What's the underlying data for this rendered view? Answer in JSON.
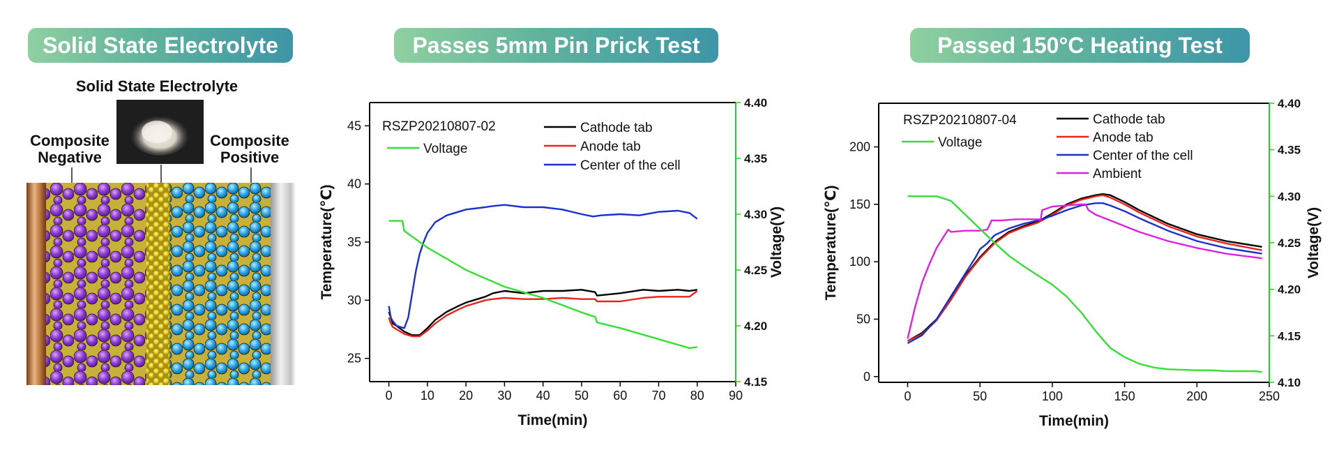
{
  "panels": {
    "electrolyte": {
      "title": "Solid State Electrolyte",
      "top_label": "Solid State Electrolyte",
      "negative_label": "Composite\nNegative",
      "positive_label": "Composite\nPositive"
    },
    "pin": {
      "title": "Passes 5mm Pin Prick Test"
    },
    "heating": {
      "title": "Passed 150°C Heating Test"
    }
  },
  "chart_data": [
    {
      "type": "line",
      "sample_id": "RSZP20210807-02",
      "xlabel": "Time(min)",
      "ylabel": "Temperature(℃)",
      "y2label": "Voltage(V)",
      "xlim": [
        -5,
        90
      ],
      "ylim": [
        23,
        47
      ],
      "y2lim": [
        4.15,
        4.4
      ],
      "xticks": [
        0,
        10,
        20,
        30,
        40,
        50,
        60,
        70,
        80,
        90
      ],
      "yticks": [
        25,
        30,
        35,
        40,
        45
      ],
      "y2ticks": [
        "4.15",
        "4.20",
        "4.25",
        "4.30",
        "4.35",
        "4.40"
      ],
      "series": [
        {
          "name": "Cathode tab",
          "color": "#000000",
          "axis": "left",
          "x": [
            0,
            0.5,
            1,
            2,
            4,
            6,
            8,
            10,
            12,
            15,
            18,
            20,
            25,
            27,
            30,
            35,
            40,
            45,
            50,
            53.5,
            54,
            60,
            66,
            70,
            75,
            78,
            80
          ],
          "y": [
            29,
            28.5,
            28,
            27.8,
            27.3,
            27.0,
            27.0,
            27.6,
            28.3,
            29.0,
            29.5,
            29.8,
            30.3,
            30.6,
            30.8,
            30.6,
            30.8,
            30.8,
            30.9,
            30.7,
            30.4,
            30.6,
            30.9,
            30.8,
            30.9,
            30.8,
            30.9
          ]
        },
        {
          "name": "Anode tab",
          "color": "#e8241c",
          "axis": "left",
          "x": [
            0,
            0.5,
            1,
            2,
            4,
            6,
            8,
            10,
            12,
            15,
            18,
            20,
            25,
            27,
            30,
            35,
            40,
            45,
            50,
            53.5,
            54,
            60,
            66,
            70,
            75,
            78,
            80
          ],
          "y": [
            28.5,
            28,
            27.7,
            27.5,
            27.1,
            26.9,
            26.9,
            27.4,
            28.0,
            28.7,
            29.2,
            29.5,
            30.0,
            30.1,
            30.2,
            30.1,
            30.1,
            30.2,
            30.1,
            30.1,
            29.9,
            29.9,
            30.2,
            30.3,
            30.3,
            30.3,
            30.8
          ]
        },
        {
          "name": "Center of the cell",
          "color": "#1a2fd0",
          "axis": "left",
          "x": [
            0,
            0.5,
            1,
            2,
            4,
            5,
            6,
            7,
            8,
            9,
            10,
            12,
            15,
            18,
            20,
            25,
            27,
            30,
            35,
            40,
            45,
            50,
            53,
            55,
            60,
            65,
            70,
            75,
            78,
            80
          ],
          "y": [
            29.5,
            28.5,
            28.2,
            27.8,
            27.6,
            28.5,
            30.5,
            32.5,
            34.0,
            35.0,
            35.8,
            36.7,
            37.3,
            37.6,
            37.8,
            38.0,
            38.1,
            38.2,
            38.0,
            38.0,
            37.8,
            37.4,
            37.2,
            37.3,
            37.4,
            37.3,
            37.6,
            37.7,
            37.5,
            37.0
          ]
        },
        {
          "name": "Voltage",
          "color": "#33e033",
          "axis": "right",
          "x": [
            0,
            3.5,
            4,
            10,
            20,
            30,
            40,
            50,
            53.5,
            54,
            60,
            70,
            78,
            80
          ],
          "y": [
            4.294,
            4.294,
            4.285,
            4.27,
            4.25,
            4.235,
            4.225,
            4.212,
            4.208,
            4.203,
            4.198,
            4.188,
            4.18,
            4.181
          ]
        }
      ]
    },
    {
      "type": "line",
      "sample_id": "RSZP20210807-04",
      "xlabel": "Time(min)",
      "ylabel": "Temperature(℃)",
      "y2label": "Voltage(V)",
      "xlim": [
        -20,
        250
      ],
      "ylim": [
        -5,
        238
      ],
      "y2lim": [
        4.1,
        4.4
      ],
      "xticks": [
        0,
        50,
        100,
        150,
        200,
        250
      ],
      "yticks": [
        0,
        50,
        100,
        150,
        200
      ],
      "y2ticks": [
        "4.10",
        "4.15",
        "4.20",
        "4.25",
        "4.30",
        "4.35",
        "4.40"
      ],
      "series": [
        {
          "name": "Cathode tab",
          "color": "#000000",
          "axis": "left",
          "x": [
            0,
            10,
            20,
            30,
            40,
            50,
            60,
            70,
            80,
            90,
            100,
            110,
            120,
            130,
            135,
            140,
            150,
            160,
            180,
            200,
            220,
            245
          ],
          "y": [
            31,
            38,
            50,
            68,
            88,
            104,
            117,
            126,
            131,
            135,
            142,
            150,
            155,
            158,
            159,
            158,
            152,
            145,
            133,
            124,
            118,
            113
          ]
        },
        {
          "name": "Anode tab",
          "color": "#e8241c",
          "axis": "left",
          "x": [
            0,
            10,
            20,
            30,
            40,
            50,
            60,
            70,
            80,
            90,
            100,
            110,
            120,
            130,
            135,
            140,
            150,
            160,
            180,
            200,
            220,
            245
          ],
          "y": [
            31,
            37,
            49,
            67,
            87,
            103,
            116,
            125,
            130,
            134,
            141,
            149,
            154,
            157,
            158,
            156,
            150,
            143,
            131,
            122,
            116,
            110
          ]
        },
        {
          "name": "Center of the cell",
          "color": "#1a2fd0",
          "axis": "left",
          "x": [
            0,
            10,
            20,
            30,
            40,
            47,
            50,
            55,
            60,
            70,
            80,
            90,
            100,
            110,
            120,
            130,
            135,
            140,
            150,
            160,
            180,
            200,
            220,
            245
          ],
          "y": [
            29,
            36,
            50,
            70,
            90,
            104,
            111,
            116,
            123,
            129,
            133,
            136,
            140,
            145,
            149,
            151,
            151,
            149,
            144,
            138,
            127,
            118,
            112,
            107
          ]
        },
        {
          "name": "Ambient",
          "color": "#e020e0",
          "axis": "left",
          "x": [
            0,
            5,
            10,
            15,
            20,
            25,
            28,
            30,
            40,
            50,
            55,
            57,
            58,
            65,
            75,
            85,
            92,
            93,
            100,
            110,
            120,
            123,
            125,
            130,
            140,
            150,
            160,
            180,
            200,
            220,
            245
          ],
          "y": [
            33,
            60,
            82,
            98,
            112,
            122,
            128,
            126,
            127,
            127,
            128,
            133,
            136,
            136,
            137,
            137,
            137,
            145,
            148,
            149,
            150,
            150,
            145,
            141,
            136,
            131,
            126,
            118,
            112,
            107,
            103
          ]
        },
        {
          "name": "Voltage",
          "color": "#33e033",
          "axis": "right",
          "x": [
            0,
            10,
            20,
            30,
            40,
            50,
            60,
            70,
            80,
            90,
            100,
            110,
            120,
            130,
            140,
            150,
            160,
            170,
            180,
            200,
            210,
            220,
            240,
            245
          ],
          "y": [
            4.3,
            4.3,
            4.3,
            4.295,
            4.28,
            4.265,
            4.25,
            4.236,
            4.225,
            4.215,
            4.205,
            4.192,
            4.175,
            4.155,
            4.137,
            4.127,
            4.12,
            4.116,
            4.114,
            4.113,
            4.113,
            4.112,
            4.112,
            4.111
          ]
        }
      ]
    }
  ]
}
